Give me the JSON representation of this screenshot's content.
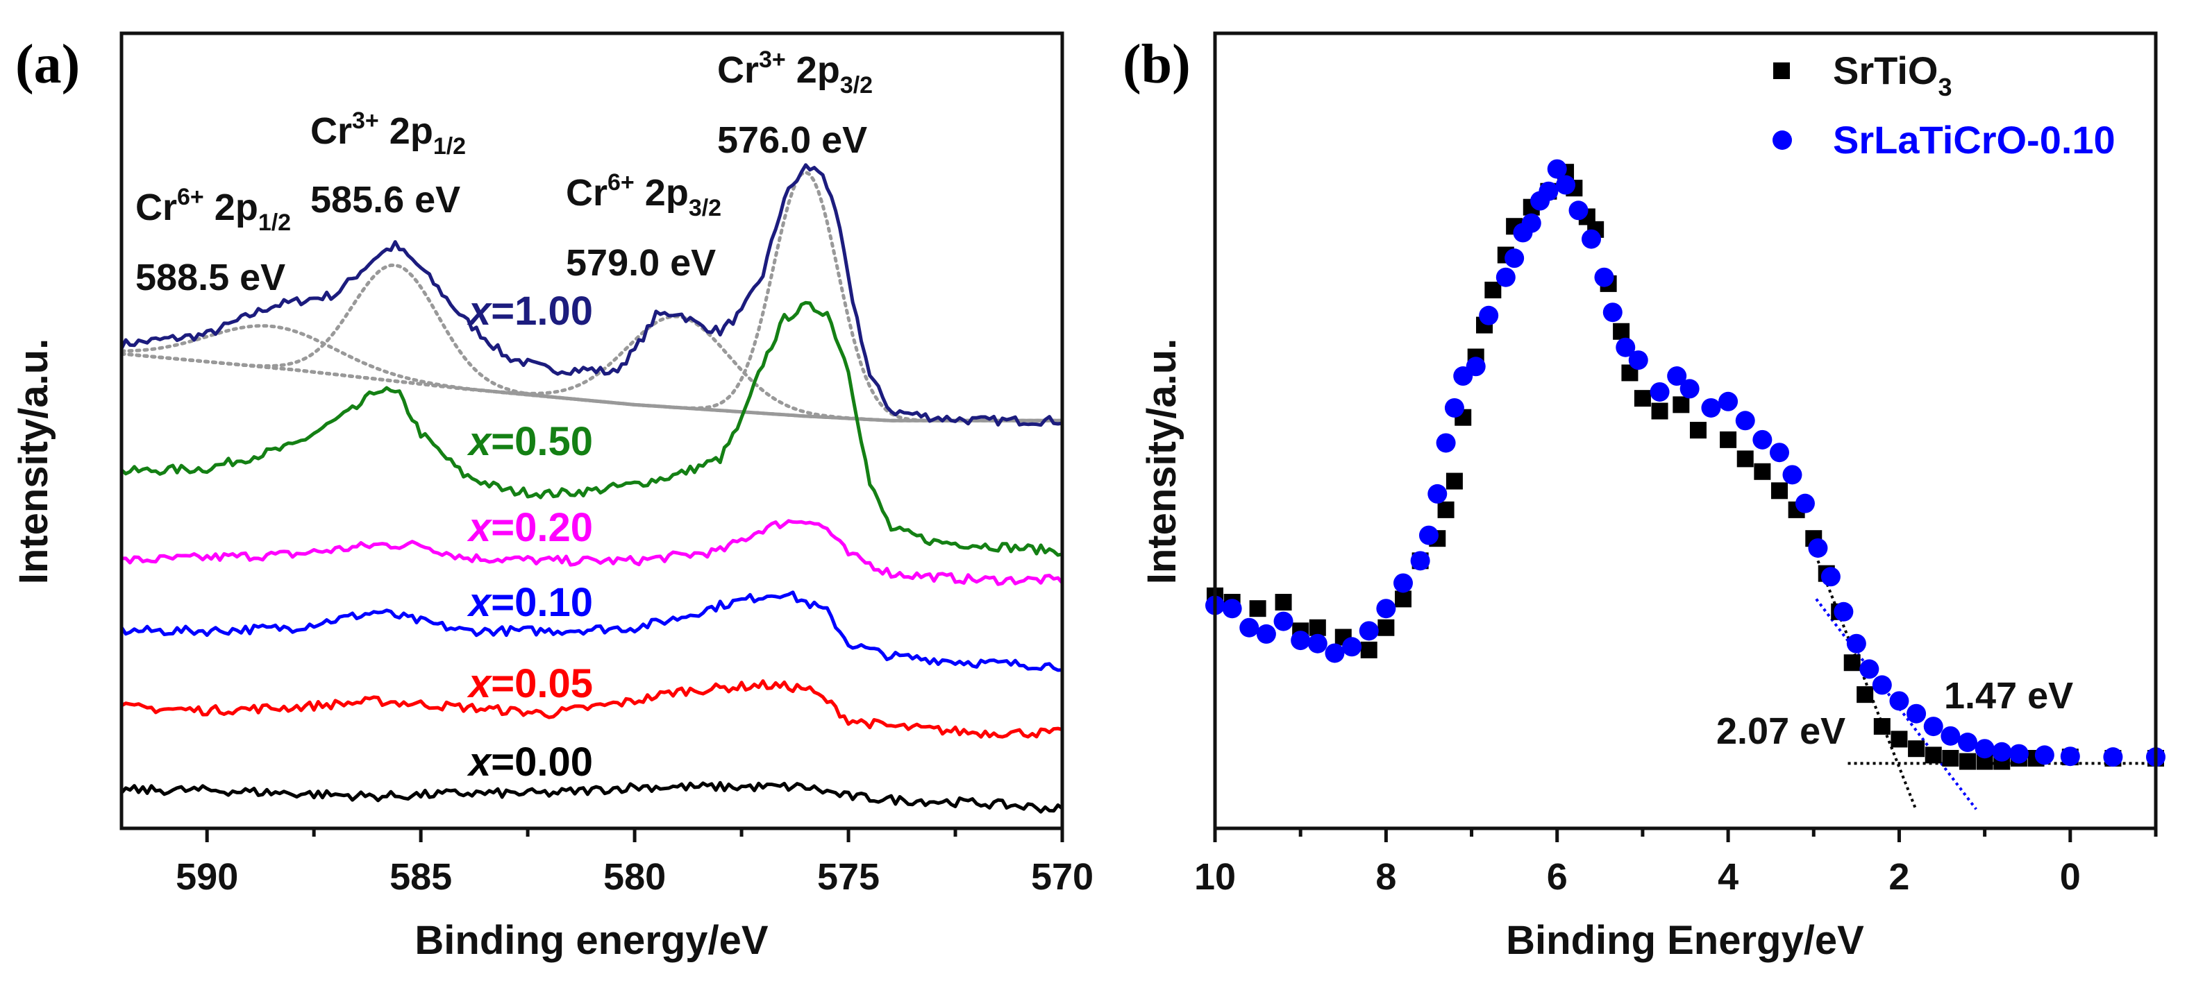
{
  "chart_data": [
    {
      "panel": "(a)",
      "type": "line",
      "xlabel": "Binding energy/eV",
      "ylabel": "Intensity/a.u.",
      "xlim": [
        592,
        570
      ],
      "ylim": [
        0,
        1248
      ],
      "xticks": [
        590,
        585,
        580,
        575,
        570
      ],
      "grid": false,
      "annotations": [
        {
          "base": "Cr",
          "sup": "6+",
          "mid": " 2p",
          "sub": "1/2",
          "value": "588.5 eV"
        },
        {
          "base": "Cr",
          "sup": "3+",
          "mid": " 2p",
          "sub": "1/2",
          "value": "585.6 eV"
        },
        {
          "base": "Cr",
          "sup": "6+",
          "mid": " 2p",
          "sub": "3/2",
          "value": "579.0 eV"
        },
        {
          "base": "Cr",
          "sup": "3+",
          "mid": " 2p",
          "sub": "3/2",
          "value": "576.0 eV"
        }
      ],
      "series": [
        {
          "name": "x=1.00",
          "var": "x",
          "val": "=1.00",
          "color": "#1c1c7e",
          "points": [
            [
              592,
              760
            ],
            [
              590,
              775
            ],
            [
              588.5,
              820
            ],
            [
              587,
              838
            ],
            [
              586,
              900
            ],
            [
              585.6,
              915
            ],
            [
              585,
              880
            ],
            [
              584,
              800
            ],
            [
              583,
              740
            ],
            [
              582,
              720
            ],
            [
              581,
              720
            ],
            [
              580.5,
              715
            ],
            [
              580,
              750
            ],
            [
              579.5,
              805
            ],
            [
              579,
              810
            ],
            [
              578.5,
              790
            ],
            [
              578,
              780
            ],
            [
              577.5,
              810
            ],
            [
              577,
              870
            ],
            [
              576.5,
              990
            ],
            [
              576,
              1038
            ],
            [
              575.6,
              1030
            ],
            [
              575.2,
              940
            ],
            [
              575,
              860
            ],
            [
              574.5,
              710
            ],
            [
              574,
              655
            ],
            [
              573,
              645
            ],
            [
              572,
              640
            ],
            [
              571,
              640
            ],
            [
              570,
              640
            ]
          ]
        },
        {
          "name": "x=0.50",
          "var": "x",
          "val": "=0.50",
          "color": "#148014",
          "points": [
            [
              592,
              560
            ],
            [
              590,
              565
            ],
            [
              588,
              600
            ],
            [
              586.5,
              660
            ],
            [
              586,
              690
            ],
            [
              585.5,
              680
            ],
            [
              585,
              620
            ],
            [
              584,
              555
            ],
            [
              583,
              530
            ],
            [
              582,
              525
            ],
            [
              581,
              530
            ],
            [
              580,
              540
            ],
            [
              579,
              555
            ],
            [
              578,
              580
            ],
            [
              577.5,
              640
            ],
            [
              577,
              730
            ],
            [
              576.5,
              800
            ],
            [
              576,
              820
            ],
            [
              575.5,
              810
            ],
            [
              575,
              720
            ],
            [
              574.5,
              540
            ],
            [
              574,
              470
            ],
            [
              573,
              450
            ],
            [
              572,
              445
            ],
            [
              571,
              440
            ],
            [
              570,
              435
            ]
          ]
        },
        {
          "name": "x=0.20",
          "var": "x",
          "val": "=0.20",
          "color": "#ff00ff",
          "points": [
            [
              592,
              420
            ],
            [
              590,
              425
            ],
            [
              588,
              430
            ],
            [
              586,
              445
            ],
            [
              585,
              445
            ],
            [
              584,
              425
            ],
            [
              582,
              420
            ],
            [
              580,
              420
            ],
            [
              578,
              435
            ],
            [
              577,
              470
            ],
            [
              576.5,
              480
            ],
            [
              576,
              485
            ],
            [
              575.5,
              470
            ],
            [
              575,
              430
            ],
            [
              574,
              400
            ],
            [
              572,
              390
            ],
            [
              570,
              390
            ]
          ]
        },
        {
          "name": "x=0.10",
          "var": "x",
          "val": "=0.10",
          "color": "#0000ff",
          "points": [
            [
              592,
              310
            ],
            [
              590,
              310
            ],
            [
              588,
              315
            ],
            [
              586,
              340
            ],
            [
              585,
              325
            ],
            [
              584,
              310
            ],
            [
              582,
              310
            ],
            [
              580,
              315
            ],
            [
              579,
              330
            ],
            [
              578,
              350
            ],
            [
              577,
              365
            ],
            [
              576.5,
              370
            ],
            [
              576,
              355
            ],
            [
              575.5,
              340
            ],
            [
              575,
              290
            ],
            [
              574,
              270
            ],
            [
              572,
              260
            ],
            [
              570,
              255
            ]
          ]
        },
        {
          "name": "x=0.05",
          "var": "x",
          "val": "=0.05",
          "color": "#ff0000",
          "points": [
            [
              592,
              190
            ],
            [
              590,
              185
            ],
            [
              588,
              190
            ],
            [
              586,
              200
            ],
            [
              584,
              190
            ],
            [
              582,
              180
            ],
            [
              580,
              200
            ],
            [
              579,
              215
            ],
            [
              578,
              220
            ],
            [
              577,
              225
            ],
            [
              576,
              220
            ],
            [
              575.5,
              200
            ],
            [
              575,
              170
            ],
            [
              574,
              160
            ],
            [
              572,
              150
            ],
            [
              570,
              150
            ]
          ]
        },
        {
          "name": "x=0.00",
          "var": "x",
          "val": "=0.00",
          "color": "#000000",
          "points": [
            [
              592,
              60
            ],
            [
              590,
              60
            ],
            [
              588,
              55
            ],
            [
              586,
              50
            ],
            [
              584,
              55
            ],
            [
              582,
              55
            ],
            [
              580,
              65
            ],
            [
              578,
              65
            ],
            [
              576,
              65
            ],
            [
              575,
              50
            ],
            [
              574,
              45
            ],
            [
              572,
              40
            ],
            [
              570,
              30
            ]
          ]
        }
      ],
      "fit": {
        "color": "#999999",
        "background": [
          [
            592,
            745
          ],
          [
            588,
            720
          ],
          [
            584,
            690
          ],
          [
            580,
            665
          ],
          [
            576,
            647
          ],
          [
            574,
            640
          ],
          [
            570,
            640
          ]
        ],
        "peaks": [
          {
            "center": 588.5,
            "amplitude": 65,
            "sigma": 1.5
          },
          {
            "center": 585.6,
            "amplitude": 182,
            "sigma": 1.0
          },
          {
            "center": 579.0,
            "amplitude": 143,
            "sigma": 1.2
          },
          {
            "center": 576.0,
            "amplitude": 383,
            "sigma": 0.75
          }
        ]
      }
    },
    {
      "panel": "(b)",
      "type": "scatter",
      "xlabel": "Binding Energy/eV",
      "ylabel": "Intensity/a.u.",
      "xlim": [
        10,
        -1
      ],
      "ylim": [
        0,
        1248
      ],
      "xticks": [
        10,
        8,
        6,
        4,
        2,
        0
      ],
      "grid": false,
      "legend": "top-right",
      "series": [
        {
          "name": "SrTiO",
          "sub": "3",
          "marker": "square",
          "color": "#000000",
          "points": [
            [
              10,
              365
            ],
            [
              9.8,
              355
            ],
            [
              9.5,
              345
            ],
            [
              9.2,
              355
            ],
            [
              9,
              310
            ],
            [
              8.8,
              315
            ],
            [
              8.5,
              300
            ],
            [
              8.2,
              280
            ],
            [
              8,
              315
            ],
            [
              7.8,
              360
            ],
            [
              7.6,
              420
            ],
            [
              7.4,
              455
            ],
            [
              7.3,
              500
            ],
            [
              7.2,
              545
            ],
            [
              7.1,
              645
            ],
            [
              6.95,
              740
            ],
            [
              6.85,
              790
            ],
            [
              6.75,
              845
            ],
            [
              6.6,
              900
            ],
            [
              6.5,
              945
            ],
            [
              6.3,
              975
            ],
            [
              6.1,
              1000
            ],
            [
              5.9,
              1030
            ],
            [
              5.8,
              1005
            ],
            [
              5.65,
              960
            ],
            [
              5.55,
              940
            ],
            [
              5.4,
              855
            ],
            [
              5.25,
              780
            ],
            [
              5.15,
              715
            ],
            [
              5,
              675
            ],
            [
              4.8,
              655
            ],
            [
              4.55,
              665
            ],
            [
              4.35,
              625
            ],
            [
              4,
              610
            ],
            [
              3.8,
              580
            ],
            [
              3.6,
              560
            ],
            [
              3.4,
              530
            ],
            [
              3.2,
              500
            ],
            [
              3,
              455
            ],
            [
              2.85,
              400
            ],
            [
              2.7,
              340
            ],
            [
              2.55,
              260
            ],
            [
              2.4,
              210
            ],
            [
              2.2,
              160
            ],
            [
              2,
              140
            ],
            [
              1.8,
              125
            ],
            [
              1.6,
              115
            ],
            [
              1.4,
              110
            ],
            [
              1.2,
              105
            ],
            [
              1,
              105
            ],
            [
              0.8,
              105
            ],
            [
              0.6,
              110
            ],
            [
              0.4,
              110
            ],
            [
              0,
              112
            ],
            [
              -0.5,
              110
            ],
            [
              -1,
              110
            ]
          ]
        },
        {
          "name": "SrLaTiCrO-0.10",
          "marker": "circle",
          "color": "#0000ff",
          "points": [
            [
              10,
              350
            ],
            [
              9.8,
              345
            ],
            [
              9.6,
              315
            ],
            [
              9.4,
              305
            ],
            [
              9.2,
              325
            ],
            [
              9,
              295
            ],
            [
              8.8,
              290
            ],
            [
              8.6,
              275
            ],
            [
              8.4,
              285
            ],
            [
              8.2,
              310
            ],
            [
              8,
              345
            ],
            [
              7.8,
              385
            ],
            [
              7.6,
              420
            ],
            [
              7.5,
              460
            ],
            [
              7.4,
              525
            ],
            [
              7.3,
              605
            ],
            [
              7.2,
              660
            ],
            [
              7.1,
              710
            ],
            [
              6.95,
              725
            ],
            [
              6.8,
              805
            ],
            [
              6.6,
              865
            ],
            [
              6.5,
              895
            ],
            [
              6.4,
              935
            ],
            [
              6.3,
              950
            ],
            [
              6.2,
              985
            ],
            [
              6.1,
              1000
            ],
            [
              6,
              1035
            ],
            [
              5.9,
              1010
            ],
            [
              5.75,
              970
            ],
            [
              5.6,
              925
            ],
            [
              5.45,
              865
            ],
            [
              5.35,
              810
            ],
            [
              5.2,
              755
            ],
            [
              5.05,
              735
            ],
            [
              4.8,
              685
            ],
            [
              4.6,
              710
            ],
            [
              4.45,
              690
            ],
            [
              4.2,
              660
            ],
            [
              4,
              670
            ],
            [
              3.8,
              640
            ],
            [
              3.6,
              610
            ],
            [
              3.4,
              590
            ],
            [
              3.25,
              555
            ],
            [
              3.1,
              510
            ],
            [
              2.95,
              440
            ],
            [
              2.8,
              395
            ],
            [
              2.65,
              340
            ],
            [
              2.5,
              290
            ],
            [
              2.35,
              250
            ],
            [
              2.2,
              225
            ],
            [
              2,
              200
            ],
            [
              1.8,
              180
            ],
            [
              1.6,
              160
            ],
            [
              1.4,
              145
            ],
            [
              1.2,
              135
            ],
            [
              1,
              125
            ],
            [
              0.8,
              120
            ],
            [
              0.6,
              117
            ],
            [
              0.3,
              115
            ],
            [
              0,
              113
            ],
            [
              -0.5,
              112
            ],
            [
              -1,
              112
            ]
          ]
        }
      ],
      "baseline": {
        "value": 102,
        "from": 2.6,
        "to": -1
      },
      "band_edges": [
        {
          "label": "2.07 eV",
          "color": "#000000",
          "line": [
            [
              2.95,
              420
            ],
            [
              1.8,
              28
            ]
          ]
        },
        {
          "label": "1.47 eV",
          "color": "#0000ff",
          "line": [
            [
              2.97,
              360
            ],
            [
              1.1,
              30
            ]
          ]
        }
      ]
    }
  ]
}
